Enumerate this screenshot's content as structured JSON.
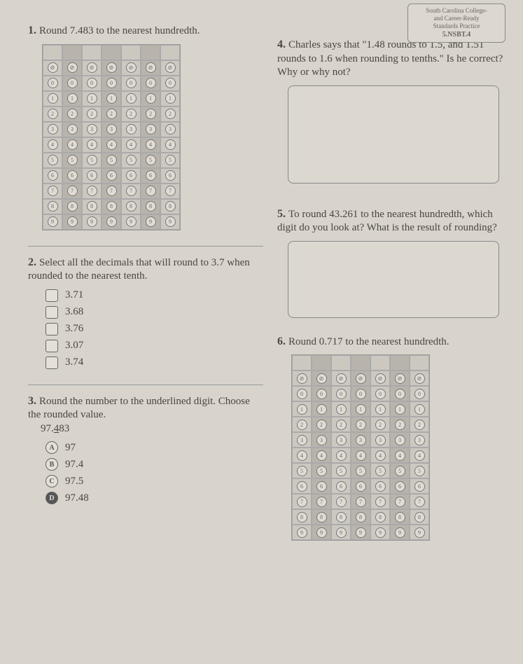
{
  "badge": {
    "line1": "South Carolina College-",
    "line2": "and Career-Ready",
    "line3": "Standards Practice",
    "code": "5.NSBT.4"
  },
  "q1": {
    "num": "1.",
    "text": "Round 7.483 to the nearest hundredth.",
    "cols": 7,
    "header_rows": 2,
    "digit_rows": 10
  },
  "q2": {
    "num": "2.",
    "text": "Select all the decimals that will round to 3.7 when rounded to the nearest tenth.",
    "opts": [
      "3.71",
      "3.68",
      "3.76",
      "3.07",
      "3.74"
    ]
  },
  "q3": {
    "num": "3.",
    "text_a": "Round the number to the underlined digit. Choose the rounded value.",
    "value_pre": "97.",
    "value_u": "4",
    "value_post": "83",
    "opts": [
      {
        "letter": "A",
        "label": "97"
      },
      {
        "letter": "B",
        "label": "97.4"
      },
      {
        "letter": "C",
        "label": "97.5"
      },
      {
        "letter": "D",
        "label": "97.48"
      }
    ]
  },
  "q4": {
    "num": "4.",
    "text": "Charles says that \"1.48 rounds to 1.5, and 1.51 rounds to 1.6 when rounding to tenths.\" Is he correct? Why or why not?"
  },
  "q5": {
    "num": "5.",
    "text": "To round 43.261 to the nearest hundredth, which digit do you look at? What is the result of rounding?"
  },
  "q6": {
    "num": "6.",
    "text": "Round 0.717 to the nearest hundredth.",
    "cols": 7,
    "header_rows": 2,
    "digit_rows": 10
  }
}
